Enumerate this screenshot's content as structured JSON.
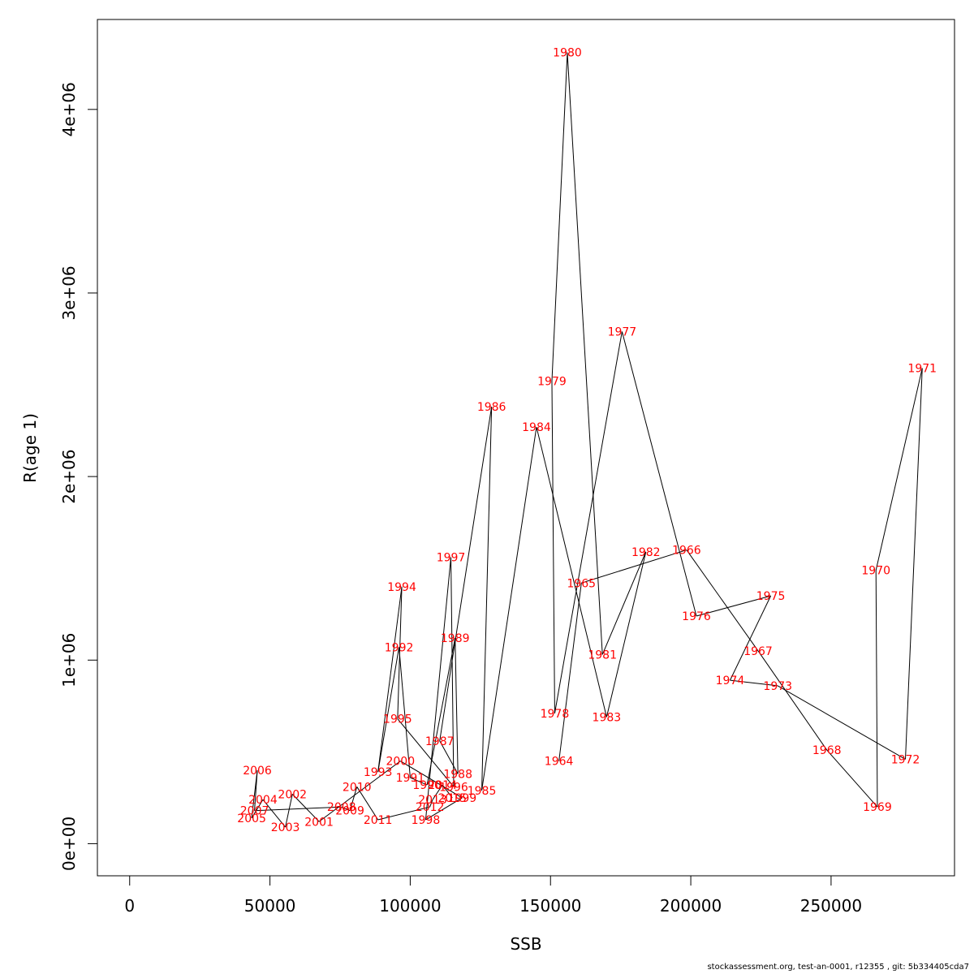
{
  "chart_data": {
    "type": "line",
    "xlabel": "SSB",
    "ylabel": "R(age 1)",
    "xlim": [
      -11500,
      294000
    ],
    "ylim": [
      -175000,
      4490000
    ],
    "x_ticks": [
      0,
      50000,
      100000,
      150000,
      200000,
      250000
    ],
    "x_tick_labels": [
      "0",
      "50000",
      "100000",
      "150000",
      "200000",
      "250000"
    ],
    "y_ticks": [
      0,
      1000000,
      2000000,
      3000000,
      4000000
    ],
    "y_tick_labels": [
      "0e+00",
      "1e+06",
      "2e+06",
      "3e+06",
      "4e+06"
    ],
    "grid": false,
    "legend": "none",
    "line_color": "#000000",
    "label_color": "#ff0000",
    "points": [
      {
        "year": "1964",
        "x": 153000,
        "y": 450000
      },
      {
        "year": "1965",
        "x": 161000,
        "y": 1420000
      },
      {
        "year": "1966",
        "x": 198500,
        "y": 1600000
      },
      {
        "year": "1967",
        "x": 224000,
        "y": 1050000
      },
      {
        "year": "1968",
        "x": 248500,
        "y": 510000
      },
      {
        "year": "1969",
        "x": 266500,
        "y": 200000
      },
      {
        "year": "1970",
        "x": 266000,
        "y": 1490000
      },
      {
        "year": "1971",
        "x": 282500,
        "y": 2590000
      },
      {
        "year": "1972",
        "x": 276500,
        "y": 460000
      },
      {
        "year": "1973",
        "x": 231000,
        "y": 860000
      },
      {
        "year": "1974",
        "x": 214000,
        "y": 890000
      },
      {
        "year": "1975",
        "x": 228500,
        "y": 1350000
      },
      {
        "year": "1976",
        "x": 202000,
        "y": 1240000
      },
      {
        "year": "1977",
        "x": 175500,
        "y": 2790000
      },
      {
        "year": "1978",
        "x": 151500,
        "y": 710000
      },
      {
        "year": "1979",
        "x": 150500,
        "y": 2520000
      },
      {
        "year": "1980",
        "x": 156000,
        "y": 4310000
      },
      {
        "year": "1981",
        "x": 168500,
        "y": 1030000
      },
      {
        "year": "1982",
        "x": 184000,
        "y": 1590000
      },
      {
        "year": "1983",
        "x": 170000,
        "y": 690000
      },
      {
        "year": "1984",
        "x": 145000,
        "y": 2270000
      },
      {
        "year": "1985",
        "x": 125500,
        "y": 290000
      },
      {
        "year": "1986",
        "x": 129000,
        "y": 2380000
      },
      {
        "year": "1987",
        "x": 110500,
        "y": 560000
      },
      {
        "year": "1988",
        "x": 117000,
        "y": 380000
      },
      {
        "year": "1989",
        "x": 116000,
        "y": 1120000
      },
      {
        "year": "1990",
        "x": 106000,
        "y": 320000
      },
      {
        "year": "1991",
        "x": 100000,
        "y": 360000
      },
      {
        "year": "1992",
        "x": 96000,
        "y": 1070000
      },
      {
        "year": "1993",
        "x": 88500,
        "y": 390000
      },
      {
        "year": "1994",
        "x": 97000,
        "y": 1400000
      },
      {
        "year": "1995",
        "x": 95500,
        "y": 680000
      },
      {
        "year": "1996",
        "x": 115500,
        "y": 310000
      },
      {
        "year": "1997",
        "x": 114500,
        "y": 1560000
      },
      {
        "year": "1998",
        "x": 105500,
        "y": 130000
      },
      {
        "year": "1999",
        "x": 118500,
        "y": 250000
      },
      {
        "year": "2000",
        "x": 96500,
        "y": 450000
      },
      {
        "year": "2001",
        "x": 67500,
        "y": 120000
      },
      {
        "year": "2002",
        "x": 58000,
        "y": 270000
      },
      {
        "year": "2003",
        "x": 55500,
        "y": 90000
      },
      {
        "year": "2004",
        "x": 47500,
        "y": 240000
      },
      {
        "year": "2005",
        "x": 43500,
        "y": 140000
      },
      {
        "year": "2006",
        "x": 45500,
        "y": 400000
      },
      {
        "year": "2007",
        "x": 44500,
        "y": 180000
      },
      {
        "year": "2008",
        "x": 75500,
        "y": 200000
      },
      {
        "year": "2009",
        "x": 78500,
        "y": 180000
      },
      {
        "year": "2010",
        "x": 81000,
        "y": 310000
      },
      {
        "year": "2011",
        "x": 88500,
        "y": 130000
      },
      {
        "year": "2012",
        "x": 107000,
        "y": 200000
      },
      {
        "year": "2013",
        "x": 108000,
        "y": 240000
      },
      {
        "year": "2014",
        "x": 111500,
        "y": 320000
      },
      {
        "year": "2015",
        "x": 115000,
        "y": 250000
      }
    ]
  },
  "footer": "stockassessment.org, test-an-0001, r12355 , git: 5b334405cda7"
}
